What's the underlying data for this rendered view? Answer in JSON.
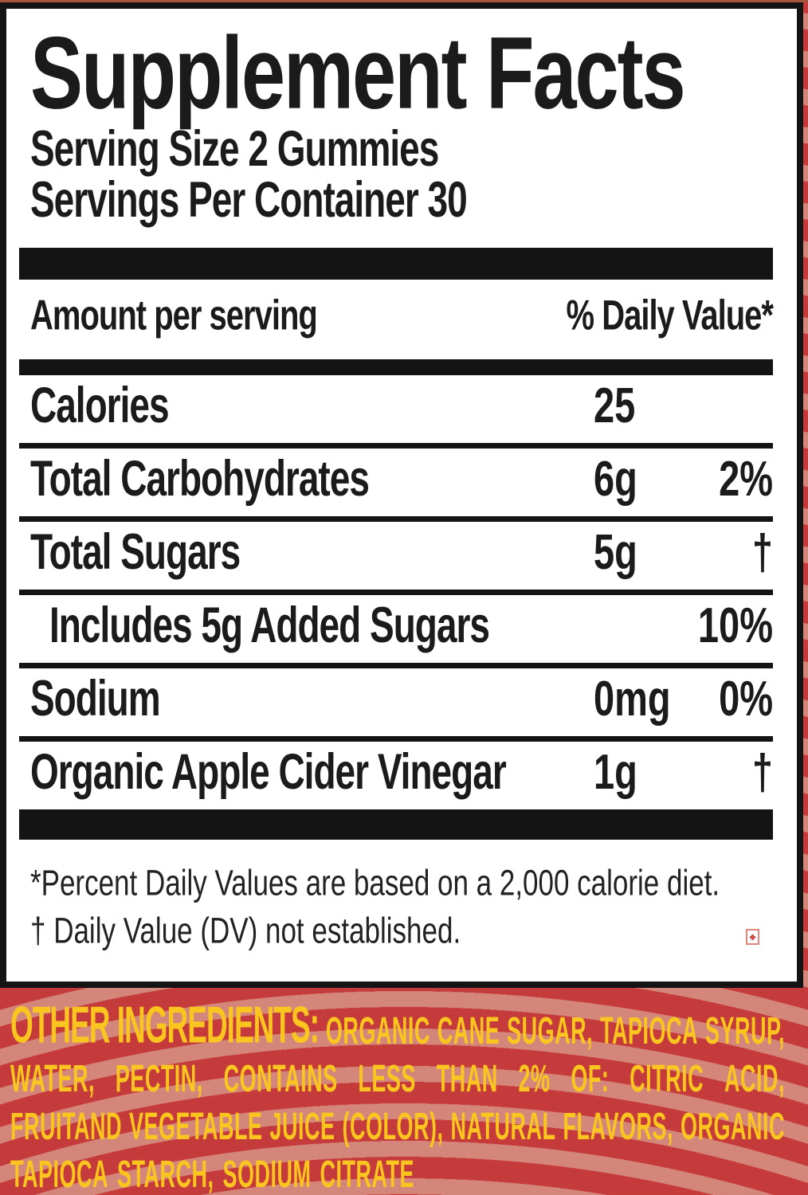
{
  "supplement_facts": {
    "title": "Supplement Facts",
    "serving_size": "Serving Size 2 Gummies",
    "servings_per_container": "Servings Per Container 30",
    "columns": {
      "amount_header": "Amount per serving",
      "dv_header": "% Daily Value*"
    },
    "rows": [
      {
        "name": "Calories",
        "amount": "25",
        "dv": ""
      },
      {
        "name": "Total Carbohydrates",
        "amount": "6g",
        "dv": "2%"
      },
      {
        "name": "Total Sugars",
        "amount": "5g",
        "dv": "†"
      },
      {
        "name": "Includes 5g Added Sugars",
        "amount": "",
        "dv": "10%"
      },
      {
        "name": "Sodium",
        "amount": "0mg",
        "dv": "0%"
      },
      {
        "name": "Organic Apple Cider Vinegar",
        "amount": "1g",
        "dv": "†"
      }
    ],
    "footnotes": [
      "*Percent Daily Values are based on a 2,000 calorie diet.",
      "† Daily Value (DV) not established."
    ]
  },
  "other_ingredients": {
    "heading": "OTHER INGREDIENTS:",
    "line1_rest": "ORGANIC CANE SUGAR, TAPIOCA SYRUP,",
    "line2": "WATER, PECTIN, CONTAINS LESS THAN 2% OF: CITRIC ACID,",
    "line3": "FRUITAND VEGETABLE JUICE (COLOR), NATURAL FLAVORS, ORGANIC",
    "line4": "TAPIOCA STARCH, SODIUM CITRATE"
  },
  "icons": {
    "broken_image": "missing-image-placeholder-cross"
  },
  "colors": {
    "background_red": "#c53a3a",
    "wave_salmon": "#d5867a",
    "ingredient_yellow": "#fbc520",
    "rule_black": "#141414",
    "top_trim": "#a9543c"
  }
}
